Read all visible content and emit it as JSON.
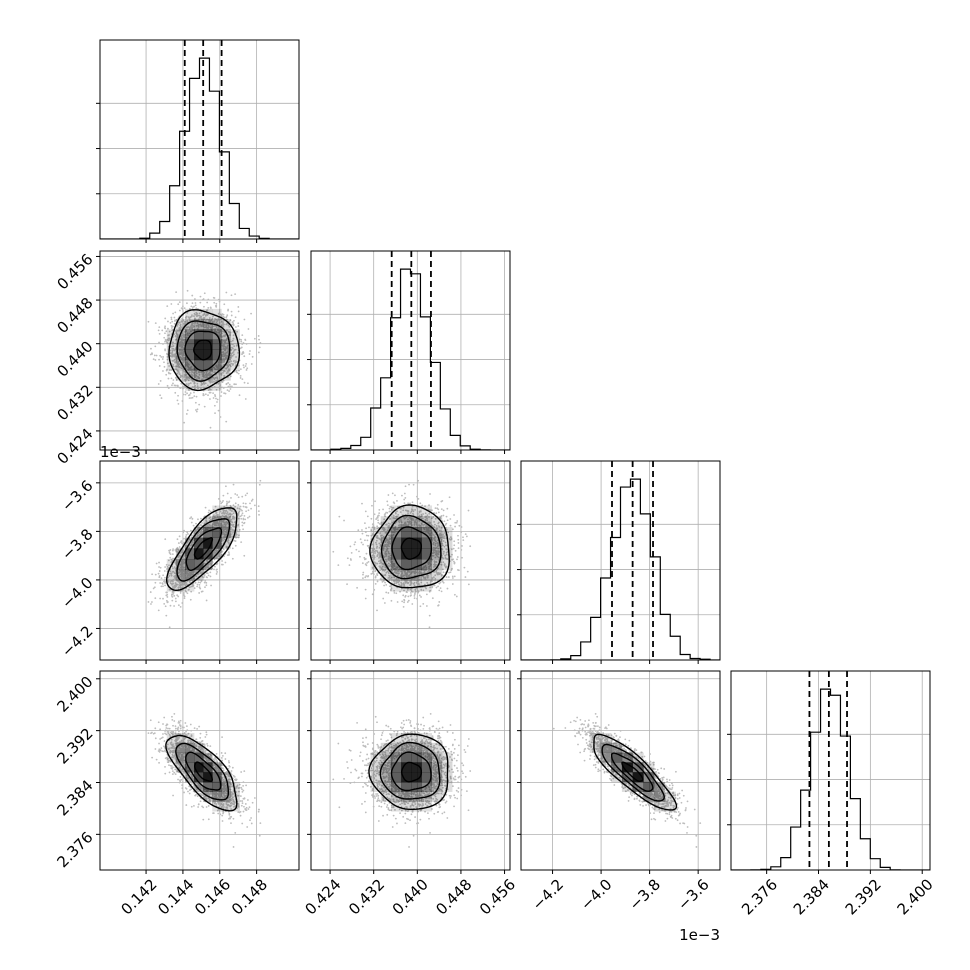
{
  "chart_data": {
    "type": "corner",
    "dimensions": [
      {
        "id": "p0",
        "range": [
          0.1395,
          0.1503
        ],
        "ticks": [
          0.142,
          0.144,
          0.146,
          0.148
        ],
        "tick_labels": [
          "0.142",
          "0.144",
          "0.146",
          "0.148"
        ],
        "offset_label": "",
        "mean": 0.1451,
        "std": 0.00095,
        "quantiles": [
          0.1441,
          0.1451,
          0.1461
        ]
      },
      {
        "id": "p1",
        "range": [
          0.4205,
          0.457
        ],
        "ticks": [
          0.424,
          0.432,
          0.44,
          0.448,
          0.456
        ],
        "tick_labels": [
          "0.424",
          "0.432",
          "0.440",
          "0.448",
          "0.456"
        ],
        "offset_label": "",
        "mean": 0.4389,
        "std": 0.0036,
        "quantiles": [
          0.4353,
          0.4389,
          0.4425
        ]
      },
      {
        "id": "p2",
        "range": [
          -4.33,
          -3.51
        ],
        "ticks": [
          -4.2,
          -4.0,
          -3.8,
          -3.6
        ],
        "tick_labels": [
          "−4.2",
          "−4.0",
          "−3.8",
          "−3.6"
        ],
        "offset_label": "1e−3",
        "mean": -3.87,
        "std": 0.085,
        "quantiles": [
          -3.955,
          -3.87,
          -3.786
        ]
      },
      {
        "id": "p3",
        "range": [
          2.3705,
          2.4012
        ],
        "ticks": [
          2.376,
          2.384,
          2.392,
          2.4
        ],
        "tick_labels": [
          "2.376",
          "2.384",
          "2.392",
          "2.400"
        ],
        "offset_label": "",
        "mean": 2.3856,
        "std": 0.0029,
        "quantiles": [
          2.3826,
          2.3856,
          2.3884
        ]
      }
    ],
    "correlations": [
      {
        "i": 0,
        "j": 1,
        "rho": 0.0
      },
      {
        "i": 0,
        "j": 2,
        "rho": 0.75
      },
      {
        "i": 0,
        "j": 3,
        "rho": -0.72
      },
      {
        "i": 1,
        "j": 2,
        "rho": 0.0
      },
      {
        "i": 1,
        "j": 3,
        "rho": 0.0
      },
      {
        "i": 2,
        "j": 3,
        "rho": -0.85
      }
    ],
    "histogram_bins": 20,
    "contour_levels_sigma": [
      0.5,
      1.0,
      1.5,
      2.0
    ],
    "grid": true,
    "colors": {
      "line": "#000000",
      "points": "#bdbdbd",
      "density": "#000000",
      "grid": "#b0b0b0"
    }
  }
}
